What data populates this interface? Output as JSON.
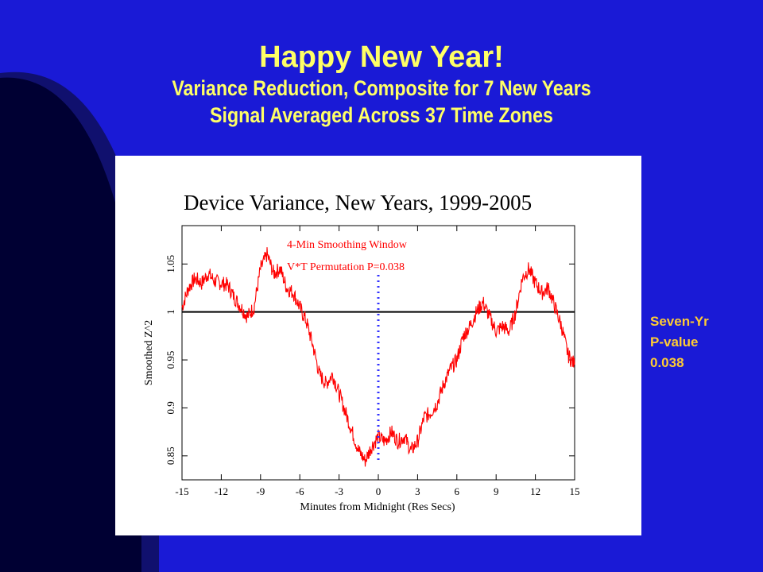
{
  "slide": {
    "title": "Happy New Year!",
    "subtitle_line1": "Variance Reduction, Composite for 7 New Years",
    "subtitle_line2": "Signal Averaged Across 37 Time Zones",
    "side_note": [
      "Seven-Yr",
      "P-value",
      "0.038"
    ]
  },
  "colors": {
    "background": "#1a1ad6",
    "title": "#ffff66",
    "side_note": "#ffcc33",
    "series": "#ff0000",
    "midnight_marker": "#3333ff",
    "annotation": "#ff0000"
  },
  "chart_data": {
    "type": "line",
    "title": "Device Variance, New Years, 1999-2005",
    "xlabel": "Minutes from Midnight (Res Secs)",
    "ylabel": "Smoothed Z^2",
    "xlim": [
      -15,
      15
    ],
    "ylim": [
      0.825,
      1.09
    ],
    "xticks": [
      -15,
      -12,
      -9,
      -6,
      -3,
      0,
      3,
      6,
      9,
      12,
      15
    ],
    "xtick_labels": [
      "-15",
      "-12",
      "-9",
      "-6",
      "-3",
      "0",
      "3",
      "6",
      "9",
      "12",
      "15"
    ],
    "yticks": [
      0.85,
      0.9,
      0.95,
      1,
      1.05
    ],
    "ytick_labels": [
      "0.85",
      "0.9",
      "0.95",
      "1",
      "1.05"
    ],
    "reference_line": 1.0,
    "midnight_marker_x": 0,
    "annotations": [
      "4-Min Smoothing Window",
      "V*T Permutation P=0.038"
    ],
    "grid": false,
    "series": [
      {
        "x": [
          -15,
          -14.5,
          -14,
          -13.5,
          -13,
          -12.5,
          -12,
          -11.5,
          -11,
          -10.5,
          -10,
          -9.5,
          -9,
          -8.5,
          -8,
          -7.5,
          -7,
          -6.5,
          -6,
          -5.5,
          -5,
          -4.5,
          -4,
          -3.5,
          -3,
          -2.5,
          -2,
          -1.5,
          -1,
          -0.5,
          0,
          0.5,
          1,
          1.5,
          2,
          2.5,
          3,
          3.5,
          4,
          4.5,
          5,
          5.5,
          6,
          6.5,
          7,
          7.5,
          8,
          8.5,
          9,
          9.5,
          10,
          10.5,
          11,
          11.5,
          12,
          12.5,
          13,
          13.5,
          14,
          14.5,
          15
        ],
        "y": [
          1.005,
          1.025,
          1.035,
          1.03,
          1.04,
          1.032,
          1.03,
          1.028,
          1.015,
          1.005,
          0.995,
          1.005,
          1.045,
          1.06,
          1.04,
          1.045,
          1.025,
          1.02,
          1.005,
          0.99,
          0.965,
          0.935,
          0.925,
          0.935,
          0.915,
          0.895,
          0.875,
          0.855,
          0.845,
          0.86,
          0.87,
          0.865,
          0.875,
          0.865,
          0.87,
          0.855,
          0.865,
          0.89,
          0.895,
          0.905,
          0.925,
          0.94,
          0.95,
          0.975,
          0.985,
          1.0,
          1.01,
          0.995,
          0.98,
          0.985,
          0.98,
          1.0,
          1.035,
          1.045,
          1.03,
          1.02,
          1.025,
          1.005,
          0.985,
          0.955,
          0.945
        ]
      }
    ]
  }
}
